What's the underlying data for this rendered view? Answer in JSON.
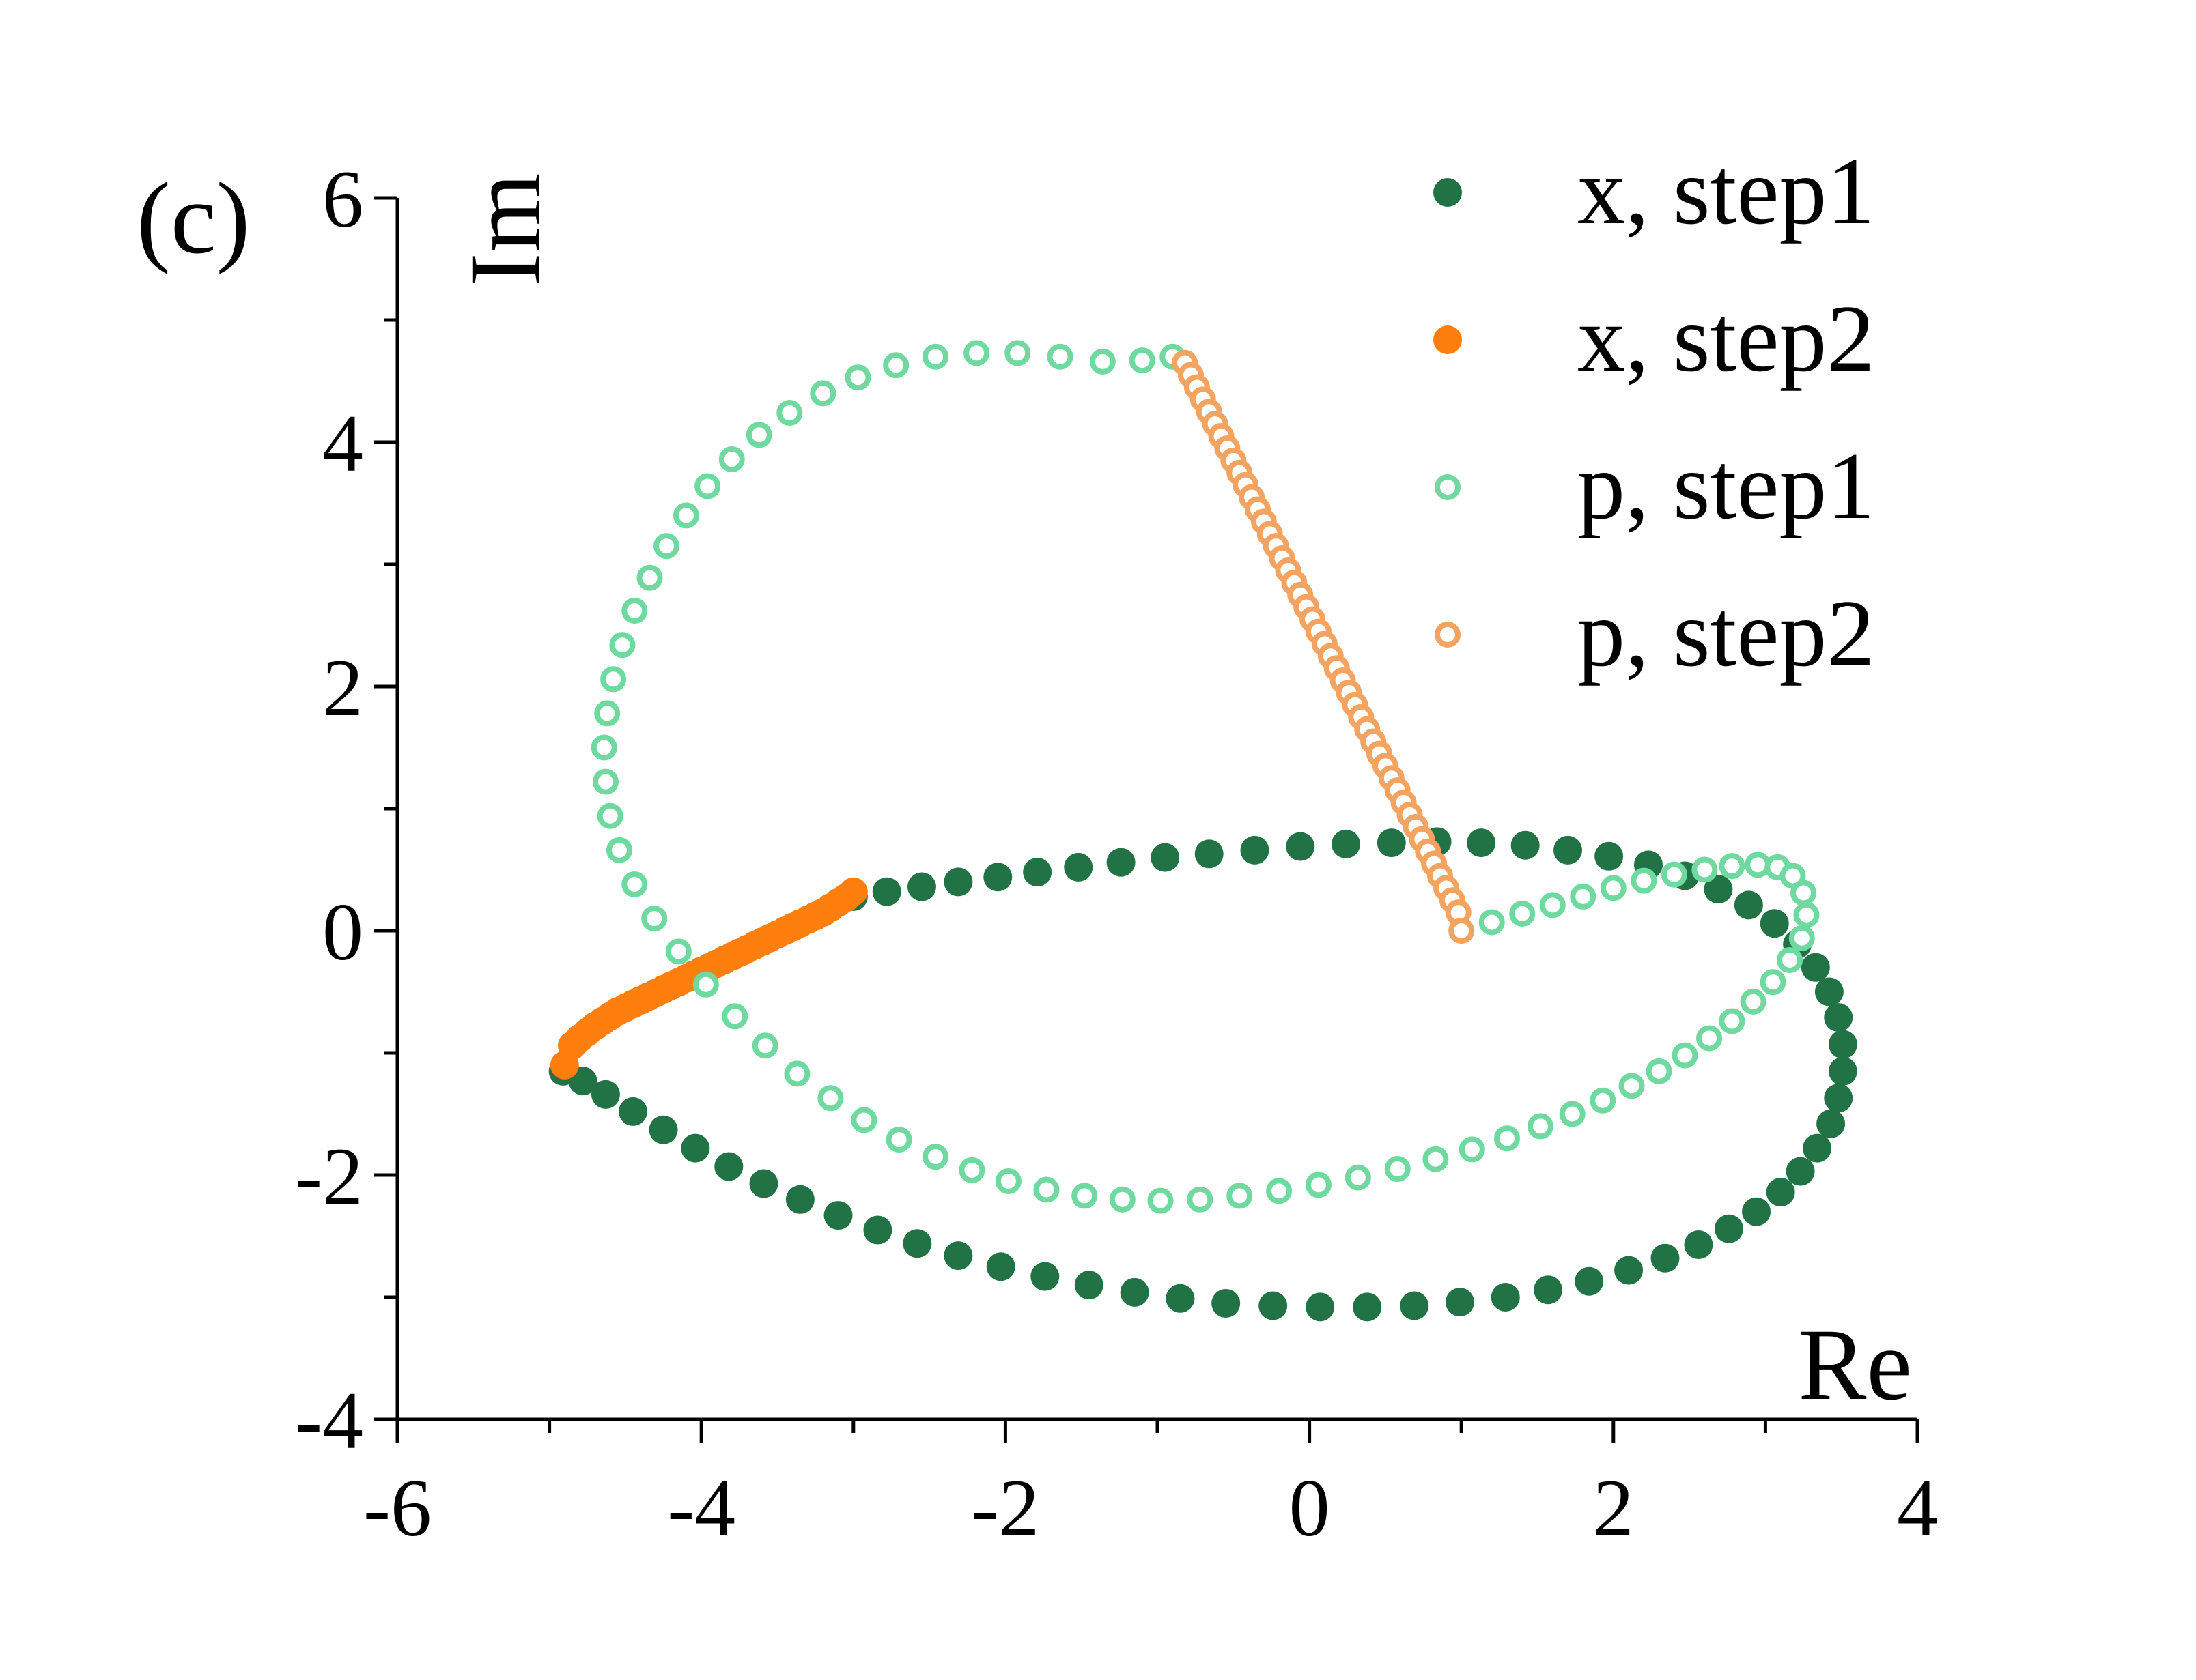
{
  "chart_data": {
    "type": "scatter",
    "panel_label": "(c)",
    "xlabel": "Re",
    "ylabel": "Im",
    "xlim": [
      -6,
      4
    ],
    "ylim": [
      -4,
      6
    ],
    "xticks": [
      -6,
      -4,
      -2,
      0,
      2,
      4
    ],
    "yticks": [
      -4,
      -2,
      0,
      2,
      4,
      6
    ],
    "xtick_labels": [
      "-6",
      "-4",
      "-2",
      "0",
      "2",
      "4"
    ],
    "ytick_labels": [
      "-4",
      "-2",
      "0",
      "2",
      "4",
      "6"
    ],
    "grid": false,
    "legend_position": "top-right",
    "series": [
      {
        "name": "x, step1",
        "marker": "filled-circle",
        "color": "#217346",
        "x": [
          -3.0,
          -2.78,
          -2.55,
          -2.31,
          -2.05,
          -1.79,
          -1.52,
          -1.24,
          -0.95,
          -0.66,
          -0.36,
          -0.06,
          0.24,
          0.54,
          0.84,
          1.13,
          1.42,
          1.7,
          1.97,
          2.23,
          2.47,
          2.69,
          2.89,
          3.06,
          3.21,
          3.33,
          3.42,
          3.48,
          3.51,
          3.51,
          3.48,
          3.43,
          3.34,
          3.23,
          3.1,
          2.94,
          2.76,
          2.56,
          2.34,
          2.1,
          1.84,
          1.57,
          1.29,
          0.99,
          0.69,
          0.38,
          0.07,
          -0.24,
          -0.55,
          -0.85,
          -1.15,
          -1.45,
          -1.74,
          -2.03,
          -2.31,
          -2.58,
          -2.84,
          -3.1,
          -3.35,
          -3.59,
          -3.82,
          -4.04,
          -4.25,
          -4.45,
          -4.63,
          -4.78,
          -4.91
        ],
        "y": [
          0.28,
          0.32,
          0.36,
          0.4,
          0.44,
          0.48,
          0.52,
          0.56,
          0.6,
          0.63,
          0.66,
          0.69,
          0.71,
          0.72,
          0.73,
          0.72,
          0.7,
          0.66,
          0.61,
          0.54,
          0.45,
          0.34,
          0.21,
          0.06,
          -0.11,
          -0.3,
          -0.5,
          -0.71,
          -0.93,
          -1.15,
          -1.37,
          -1.58,
          -1.78,
          -1.97,
          -2.14,
          -2.3,
          -2.44,
          -2.57,
          -2.68,
          -2.78,
          -2.87,
          -2.94,
          -3.0,
          -3.04,
          -3.07,
          -3.08,
          -3.08,
          -3.07,
          -3.05,
          -3.01,
          -2.96,
          -2.9,
          -2.83,
          -2.75,
          -2.66,
          -2.56,
          -2.45,
          -2.33,
          -2.2,
          -2.07,
          -1.93,
          -1.78,
          -1.63,
          -1.48,
          -1.34,
          -1.23,
          -1.15
        ]
      },
      {
        "name": "x, step2",
        "marker": "filled-circle",
        "color": "#ff7f0e",
        "x": [
          -3.0,
          -3.05,
          -3.1,
          -3.15,
          -3.2,
          -3.25,
          -3.3,
          -3.35,
          -3.4,
          -3.45,
          -3.5,
          -3.55,
          -3.6,
          -3.65,
          -3.7,
          -3.75,
          -3.8,
          -3.85,
          -3.9,
          -3.95,
          -4.0,
          -4.05,
          -4.1,
          -4.15,
          -4.2,
          -4.25,
          -4.3,
          -4.35,
          -4.4,
          -4.45,
          -4.5,
          -4.55,
          -4.6,
          -4.65,
          -4.7,
          -4.75,
          -4.8,
          -4.85,
          -4.9
        ],
        "y": [
          0.32,
          0.27,
          0.23,
          0.19,
          0.15,
          0.12,
          0.09,
          0.06,
          0.03,
          0.0,
          -0.03,
          -0.06,
          -0.09,
          -0.12,
          -0.15,
          -0.18,
          -0.21,
          -0.24,
          -0.27,
          -0.3,
          -0.33,
          -0.36,
          -0.39,
          -0.42,
          -0.45,
          -0.48,
          -0.51,
          -0.54,
          -0.57,
          -0.6,
          -0.63,
          -0.66,
          -0.7,
          -0.74,
          -0.78,
          -0.83,
          -0.88,
          -0.94,
          -1.1
        ]
      },
      {
        "name": "p, step1",
        "marker": "open-circle",
        "color": "#6fd9a0",
        "x": [
          1.0,
          1.2,
          1.4,
          1.6,
          1.8,
          2.0,
          2.2,
          2.4,
          2.6,
          2.78,
          2.95,
          3.08,
          3.18,
          3.25,
          3.27,
          3.24,
          3.16,
          3.05,
          2.92,
          2.78,
          2.63,
          2.47,
          2.3,
          2.12,
          1.93,
          1.73,
          1.52,
          1.3,
          1.07,
          0.83,
          0.58,
          0.32,
          0.06,
          -0.2,
          -0.46,
          -0.72,
          -0.98,
          -1.23,
          -1.48,
          -1.73,
          -1.98,
          -2.22,
          -2.46,
          -2.7,
          -2.93,
          -3.15,
          -3.37,
          -3.58,
          -3.78,
          -3.97,
          -4.15,
          -4.31,
          -4.44,
          -4.54,
          -4.6,
          -4.63,
          -4.64,
          -4.62,
          -4.58,
          -4.52,
          -4.44,
          -4.34,
          -4.23,
          -4.1,
          -3.96,
          -3.8,
          -3.62,
          -3.42,
          -3.2,
          -2.97,
          -2.72,
          -2.46,
          -2.19,
          -1.92,
          -1.64,
          -1.36,
          -1.1,
          -0.9
        ],
        "y": [
          0.0,
          0.07,
          0.14,
          0.21,
          0.28,
          0.35,
          0.41,
          0.46,
          0.5,
          0.53,
          0.54,
          0.52,
          0.45,
          0.31,
          0.13,
          -0.06,
          -0.24,
          -0.42,
          -0.58,
          -0.74,
          -0.88,
          -1.02,
          -1.15,
          -1.27,
          -1.39,
          -1.5,
          -1.6,
          -1.7,
          -1.79,
          -1.87,
          -1.95,
          -2.02,
          -2.08,
          -2.13,
          -2.17,
          -2.2,
          -2.21,
          -2.2,
          -2.17,
          -2.12,
          -2.05,
          -1.96,
          -1.85,
          -1.71,
          -1.55,
          -1.37,
          -1.17,
          -0.94,
          -0.7,
          -0.44,
          -0.17,
          0.1,
          0.38,
          0.66,
          0.94,
          1.22,
          1.5,
          1.78,
          2.06,
          2.34,
          2.62,
          2.89,
          3.15,
          3.4,
          3.64,
          3.86,
          4.06,
          4.24,
          4.4,
          4.53,
          4.63,
          4.7,
          4.73,
          4.73,
          4.7,
          4.66,
          4.67,
          4.7
        ]
      },
      {
        "name": "p, step2",
        "marker": "open-circle",
        "color": "#f4a460",
        "x": [
          -0.82,
          -0.78,
          -0.74,
          -0.7,
          -0.66,
          -0.62,
          -0.58,
          -0.54,
          -0.5,
          -0.46,
          -0.42,
          -0.38,
          -0.34,
          -0.3,
          -0.26,
          -0.22,
          -0.18,
          -0.14,
          -0.1,
          -0.06,
          -0.02,
          0.02,
          0.06,
          0.1,
          0.14,
          0.18,
          0.22,
          0.26,
          0.3,
          0.34,
          0.38,
          0.42,
          0.46,
          0.5,
          0.54,
          0.58,
          0.62,
          0.66,
          0.7,
          0.74,
          0.78,
          0.82,
          0.86,
          0.9,
          0.94,
          0.98,
          1.0
        ],
        "y": [
          4.65,
          4.55,
          4.45,
          4.35,
          4.25,
          4.15,
          4.05,
          3.95,
          3.85,
          3.75,
          3.65,
          3.55,
          3.45,
          3.35,
          3.25,
          3.15,
          3.05,
          2.95,
          2.85,
          2.75,
          2.65,
          2.55,
          2.45,
          2.35,
          2.25,
          2.15,
          2.05,
          1.95,
          1.85,
          1.75,
          1.65,
          1.55,
          1.45,
          1.35,
          1.25,
          1.15,
          1.05,
          0.95,
          0.85,
          0.75,
          0.65,
          0.55,
          0.45,
          0.35,
          0.25,
          0.15,
          0.0
        ]
      }
    ]
  }
}
